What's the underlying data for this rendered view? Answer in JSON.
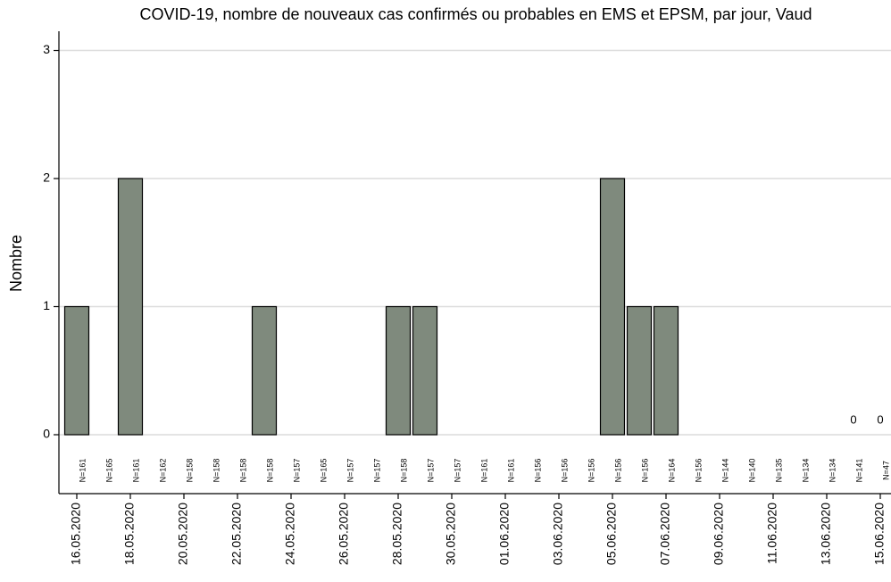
{
  "chart_data": {
    "type": "bar",
    "title": "COVID-19, nombre de nouveaux cas confirmés ou probables en EMS et EPSM, par jour, Vaud",
    "y_label": "Nombre",
    "categories": [
      "16.05.2020",
      null,
      "18.05.2020",
      null,
      "20.05.2020",
      null,
      "22.05.2020",
      null,
      "24.05.2020",
      null,
      "26.05.2020",
      null,
      "28.05.2020",
      null,
      "30.05.2020",
      null,
      "01.06.2020",
      null,
      "03.06.2020",
      null,
      "05.06.2020",
      null,
      "07.06.2020",
      null,
      "09.06.2020",
      null,
      "11.06.2020",
      null,
      "13.06.2020",
      null,
      "15.06.2020"
    ],
    "values": [
      1,
      0,
      2,
      0,
      0,
      0,
      0,
      1,
      0,
      0,
      0,
      0,
      1,
      1,
      0,
      0,
      0,
      0,
      0,
      0,
      2,
      1,
      1,
      0,
      0,
      0,
      0,
      0,
      0,
      0,
      0
    ],
    "value_labels": [
      null,
      null,
      null,
      null,
      null,
      null,
      null,
      null,
      null,
      null,
      null,
      null,
      null,
      null,
      null,
      null,
      null,
      null,
      null,
      null,
      null,
      null,
      null,
      null,
      null,
      null,
      null,
      null,
      null,
      "0",
      "0"
    ],
    "n_labels": [
      "N=161",
      "N=165",
      "N=161",
      "N=162",
      "N=158",
      "N=158",
      "N=158",
      "N=158",
      "N=157",
      "N=165",
      "N=157",
      "N=157",
      "N=158",
      "N=157",
      "N=157",
      "N=161",
      "N=161",
      "N=156",
      "N=156",
      "N=156",
      "N=156",
      "N=156",
      "N=164",
      "N=156",
      "N=144",
      "N=140",
      "N=135",
      "N=134",
      "N=134",
      "N=141",
      "N=47"
    ],
    "color": "#7f8a7d",
    "ylim": [
      -0.46,
      3.15
    ],
    "yticks": [
      0,
      1,
      2,
      3
    ],
    "grid": true
  }
}
